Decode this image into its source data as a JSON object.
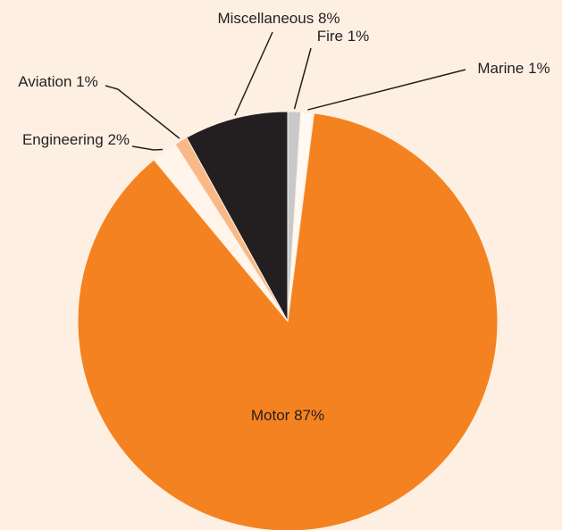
{
  "chart_data": {
    "type": "pie",
    "categories": [
      "Fire",
      "Marine",
      "Motor",
      "Engineering",
      "Aviation",
      "Miscellaneous"
    ],
    "values": [
      1,
      1,
      87,
      2,
      1,
      8
    ],
    "value_labels": [
      "1%",
      "1%",
      "87%",
      "2%",
      "1%",
      "8%"
    ],
    "colors": [
      "#c9c9cb",
      "#fff9f1",
      "#f58220",
      "#fff5ea",
      "#f9b987",
      "#231f20"
    ]
  }
}
